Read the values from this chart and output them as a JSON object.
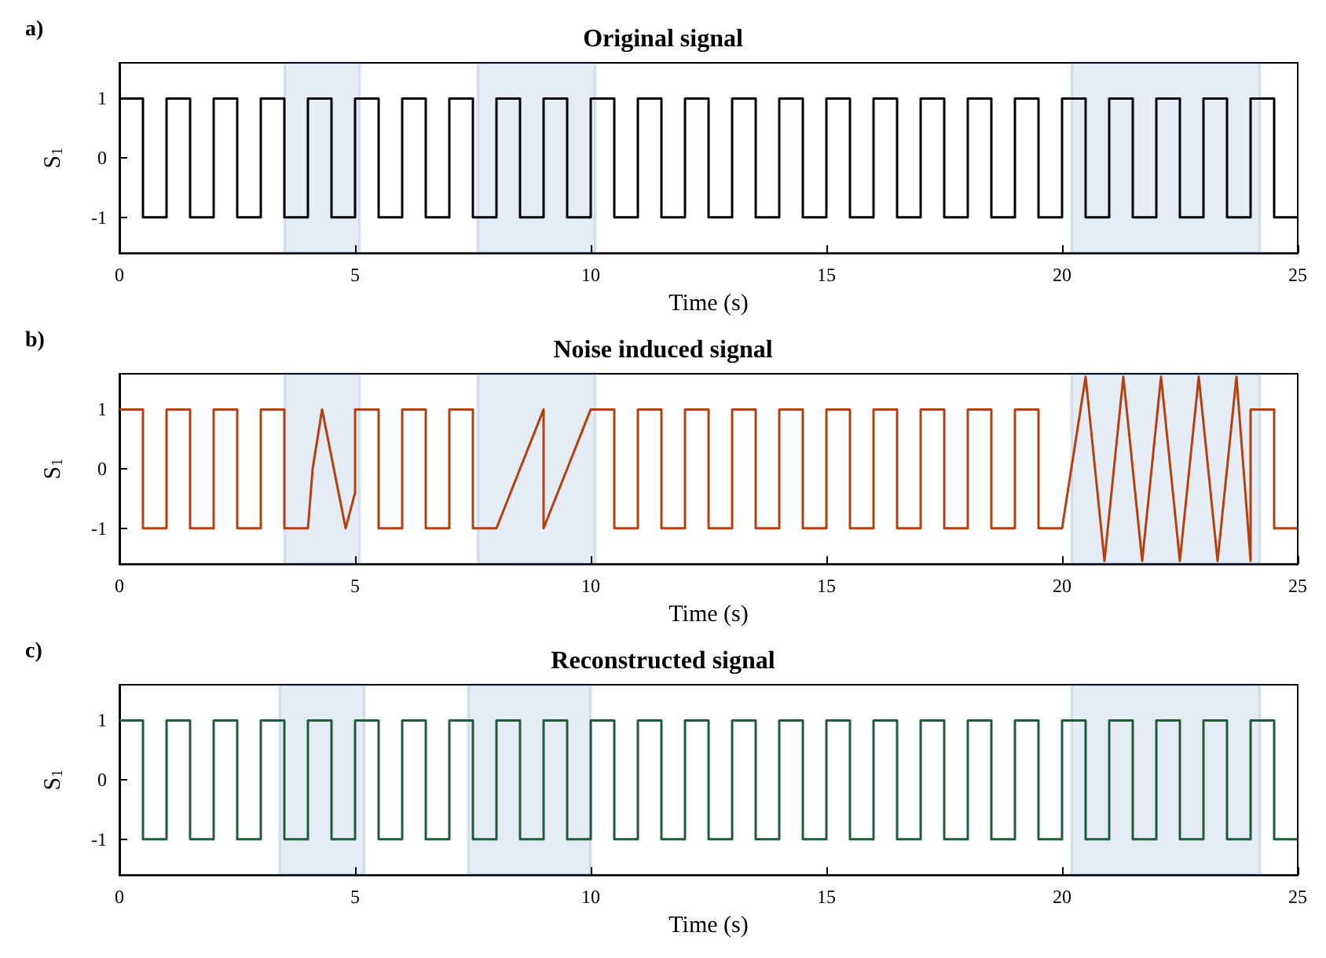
{
  "chart_data": [
    {
      "type": "step",
      "title": "Original signal",
      "xlabel": "Time (s)",
      "ylabel": "S$_{1}$",
      "annotations": [
        "a)"
      ],
      "x": [
        0,
        0.5,
        1,
        1.5,
        2,
        2.5,
        3,
        3.5,
        4,
        4.5,
        5,
        5.5,
        6,
        6.5,
        7,
        7.5,
        8,
        8.5,
        9,
        9.5,
        10,
        10.5,
        11,
        11.5,
        12,
        12.5,
        13,
        13.5,
        14,
        14.5,
        15,
        15.5,
        16,
        16.5,
        17,
        17.5,
        18,
        18.5,
        19,
        19.5,
        20,
        20.5,
        21,
        21.5,
        22,
        22.5,
        23,
        23.5,
        24,
        24.5,
        25
      ],
      "series": [
        {
          "color": "#000000",
          "values": [
            1,
            -1,
            1,
            -1,
            1,
            -1,
            1,
            -1,
            1,
            -1,
            1,
            -1,
            1,
            -1,
            1,
            -1,
            1,
            -1,
            1,
            -1,
            1,
            -1,
            1,
            -1,
            1,
            -1,
            1,
            -1,
            1,
            -1,
            1,
            -1,
            1,
            -1,
            1,
            -1,
            1,
            -1,
            1,
            -1,
            1,
            -1,
            1,
            -1,
            1,
            -1,
            1,
            -1,
            1,
            -1,
            -1
          ]
        }
      ],
      "bands": [
        {
          "axis": "x",
          "from": 3.5,
          "to": 5.1,
          "color": "#2a62b0"
        },
        {
          "axis": "x",
          "from": 7.6,
          "to": 10.1,
          "color": "#2a62b0"
        },
        {
          "axis": "x",
          "from": 20.2,
          "to": 24.2,
          "color": "#2a62b0"
        }
      ],
      "xlim": [
        0,
        25
      ],
      "xticks": [
        0,
        5,
        10,
        15,
        20,
        25
      ],
      "ylim": [
        -1.6,
        1.6
      ],
      "yticks": [
        -1,
        0,
        1
      ],
      "grid": false
    },
    {
      "type": "line",
      "title": "Noise induced signal",
      "xlabel": "Time (s)",
      "ylabel": "S$_{1}$",
      "annotations": [
        "b)"
      ],
      "x": [
        0,
        0.5,
        0.5,
        1,
        1,
        1.5,
        1.5,
        2,
        2,
        2.5,
        2.5,
        3,
        3,
        3.5,
        3.5,
        4,
        4.1,
        4.3,
        4.55,
        4.8,
        5,
        5,
        5.5,
        5.5,
        6,
        6,
        6.5,
        6.5,
        7,
        7,
        7.5,
        7.5,
        8,
        9,
        9,
        10,
        10,
        10.5,
        10.5,
        11,
        11,
        11.5,
        11.5,
        12,
        12,
        12.5,
        12.5,
        13,
        13,
        13.5,
        13.5,
        14,
        14,
        14.5,
        14.5,
        15,
        15,
        15.5,
        15.5,
        16,
        16,
        16.5,
        16.5,
        17,
        17,
        17.5,
        17.5,
        18,
        18,
        18.5,
        18.5,
        19,
        19,
        19.5,
        19.5,
        20,
        20.5,
        20.9,
        21.3,
        21.7,
        22.1,
        22.5,
        22.9,
        23.3,
        23.7,
        24,
        24,
        24.5,
        24.5,
        25
      ],
      "series": [
        {
          "color": "#b5400f",
          "values": [
            1,
            1,
            -1,
            -1,
            1,
            1,
            -1,
            -1,
            1,
            1,
            -1,
            -1,
            1,
            1,
            -1,
            -1,
            0,
            1,
            0,
            -1,
            -0.4,
            1,
            1,
            -1,
            -1,
            1,
            1,
            -1,
            -1,
            1,
            1,
            -1,
            -1,
            1,
            -1,
            1,
            1,
            1,
            -1,
            -1,
            1,
            1,
            -1,
            -1,
            1,
            1,
            -1,
            -1,
            1,
            1,
            -1,
            -1,
            1,
            1,
            -1,
            -1,
            1,
            1,
            -1,
            -1,
            1,
            1,
            -1,
            -1,
            1,
            1,
            -1,
            -1,
            1,
            1,
            -1,
            -1,
            1,
            1,
            -1,
            -1,
            1.55,
            -1.55,
            1.55,
            -1.55,
            1.55,
            -1.55,
            1.55,
            -1.55,
            1.55,
            -1.55,
            1,
            1,
            -1,
            -1
          ]
        }
      ],
      "bands": [
        {
          "axis": "x",
          "from": 3.5,
          "to": 5.1,
          "color": "#2a62b0"
        },
        {
          "axis": "x",
          "from": 7.6,
          "to": 10.1,
          "color": "#2a62b0"
        },
        {
          "axis": "x",
          "from": 20.2,
          "to": 24.2,
          "color": "#2a62b0"
        }
      ],
      "xlim": [
        0,
        25
      ],
      "xticks": [
        0,
        5,
        10,
        15,
        20,
        25
      ],
      "ylim": [
        -1.6,
        1.6
      ],
      "yticks": [
        -1,
        0,
        1
      ],
      "grid": false
    },
    {
      "type": "step",
      "title": "Reconstructed signal",
      "xlabel": "Time (s)",
      "ylabel": "S$_{1}$",
      "annotations": [
        "c)"
      ],
      "x": [
        0,
        0.5,
        1,
        1.5,
        2,
        2.5,
        3,
        3.5,
        4,
        4.5,
        5,
        5.5,
        6,
        6.5,
        7,
        7.5,
        8,
        8.5,
        9,
        9.5,
        10,
        10.5,
        11,
        11.5,
        12,
        12.5,
        13,
        13.5,
        14,
        14.5,
        15,
        15.5,
        16,
        16.5,
        17,
        17.5,
        18,
        18.5,
        19,
        19.5,
        20,
        20.5,
        21,
        21.5,
        22,
        22.5,
        23,
        23.5,
        24,
        24.5,
        25
      ],
      "series": [
        {
          "color": "#1e5c3a",
          "values": [
            1,
            -1,
            1,
            -1,
            1,
            -1,
            1,
            -1,
            1,
            -1,
            1,
            -1,
            1,
            -1,
            1,
            -1,
            1,
            -1,
            1,
            -1,
            1,
            -1,
            1,
            -1,
            1,
            -1,
            1,
            -1,
            1,
            -1,
            1,
            -1,
            1,
            -1,
            1,
            -1,
            1,
            -1,
            1,
            -1,
            1,
            -1,
            1,
            -1,
            1,
            -1,
            1,
            -1,
            1,
            -1,
            -1
          ]
        }
      ],
      "bands": [
        {
          "axis": "x",
          "from": 3.4,
          "to": 5.2,
          "color": "#2a62b0"
        },
        {
          "axis": "x",
          "from": 7.4,
          "to": 10.0,
          "color": "#2a62b0"
        },
        {
          "axis": "x",
          "from": 20.2,
          "to": 24.2,
          "color": "#2a62b0"
        }
      ],
      "xlim": [
        0,
        25
      ],
      "xticks": [
        0,
        5,
        10,
        15,
        20,
        25
      ],
      "ylim": [
        -1.6,
        1.6
      ],
      "yticks": [
        -1,
        0,
        1
      ],
      "grid": false
    }
  ]
}
